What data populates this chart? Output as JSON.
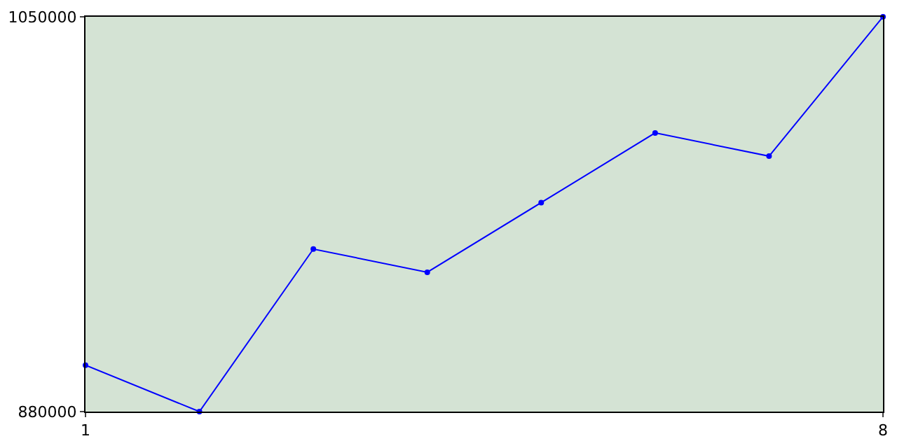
{
  "chart_data": {
    "type": "line",
    "x": [
      1,
      2,
      3,
      4,
      5,
      6,
      7,
      8
    ],
    "series": [
      {
        "color": "#0000ff",
        "values": [
          900000,
          880000,
          950000,
          940000,
          970000,
          1000000,
          990000,
          1050000
        ]
      }
    ],
    "xlim": [
      1,
      8
    ],
    "xticks": [
      1,
      8
    ],
    "ylim": [
      880000,
      1050000
    ],
    "yticks": [
      880000,
      1050000
    ],
    "legend": false,
    "marker": "circle",
    "line_style": "solid"
  }
}
